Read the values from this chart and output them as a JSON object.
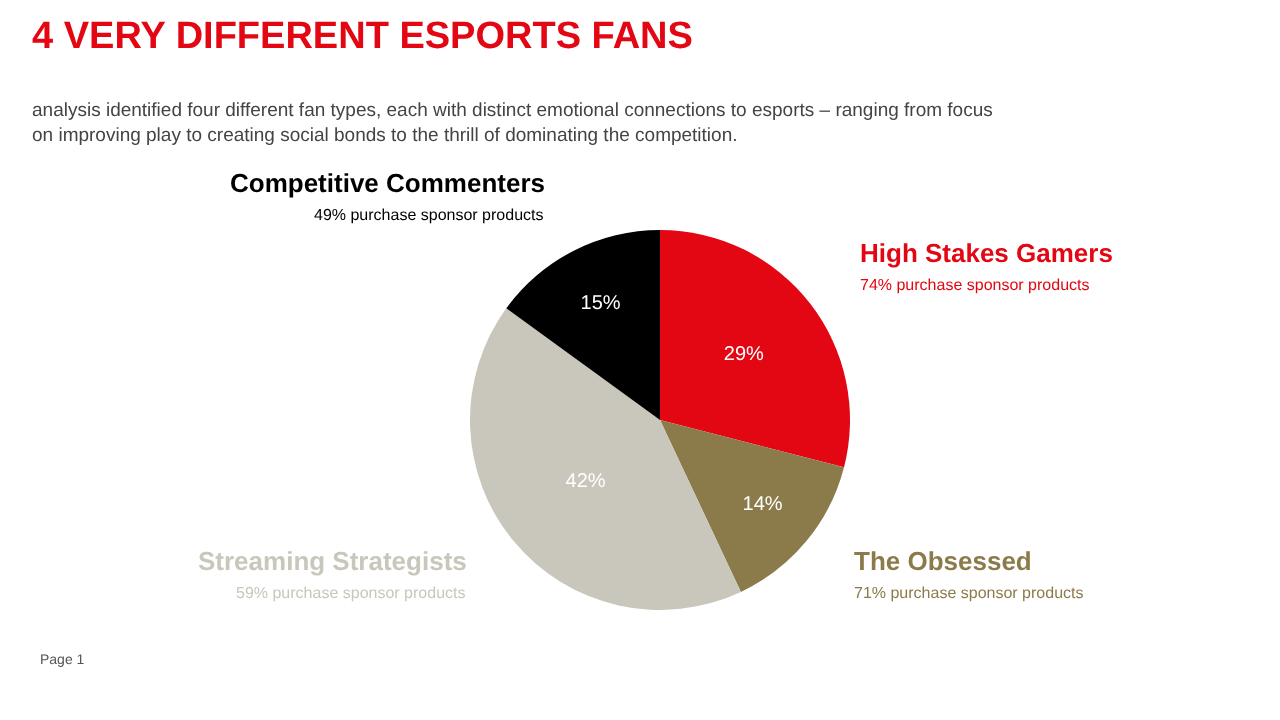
{
  "chart_data": {
    "type": "pie",
    "title": "4 VERY DIFFERENT ESPORTS FANS",
    "subtitle": "analysis identified four different fan types, each with distinct emotional connections to esports – ranging from focus on improving play to creating social bonds to the thrill of dominating the competition.",
    "categories": [
      "High Stakes Gamers",
      "The Obsessed",
      "Streaming Strategists",
      "Competitive Commenters"
    ],
    "values": [
      29,
      14,
      42,
      15
    ],
    "colors": [
      "#e30613",
      "#8c7b4a",
      "#c9c6bb",
      "#000000"
    ],
    "value_labels": [
      "29%",
      "14%",
      "42%",
      "15%"
    ],
    "legend": false,
    "annotations": [
      "74% purchase sponsor products",
      "71% purchase sponsor products",
      "59% purchase sponsor products",
      "49% purchase sponsor products",
      "Page 1"
    ]
  }
}
